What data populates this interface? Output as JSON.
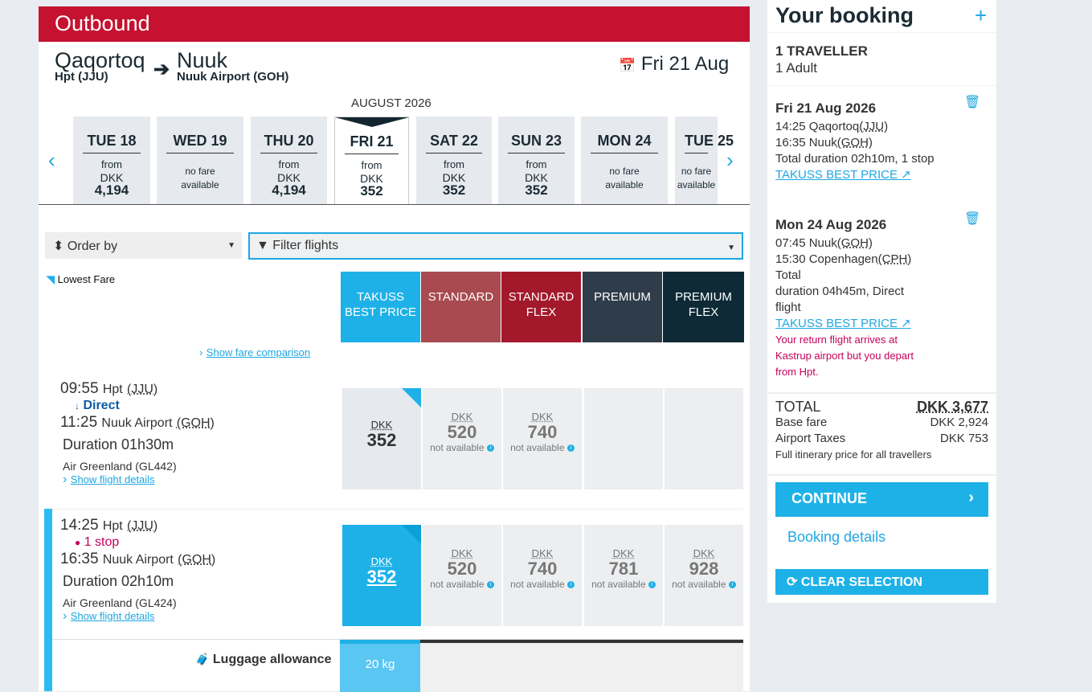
{
  "header": {
    "title": "Outbound"
  },
  "route": {
    "from_city": "Qaqortoq",
    "from_airport": "Hpt (JJU)",
    "to_city": "Nuuk",
    "to_airport": "Nuuk Airport (GOH)",
    "date": "Fri 21 Aug"
  },
  "calendar": {
    "month": "AUGUST 2026",
    "days": [
      {
        "day": "TUE 18",
        "from": "from",
        "cur": "DKK",
        "price": "4,194"
      },
      {
        "day": "WED 19",
        "nofare": "no fare",
        "available": "available"
      },
      {
        "day": "THU 20",
        "from": "from",
        "cur": "DKK",
        "price": "4,194"
      },
      {
        "day": "FRI 21",
        "from": "from",
        "cur": "DKK",
        "price": "352"
      },
      {
        "day": "SAT 22",
        "from": "from",
        "cur": "DKK",
        "price": "352"
      },
      {
        "day": "SUN 23",
        "from": "from",
        "cur": "DKK",
        "price": "352"
      },
      {
        "day": "MON 24",
        "nofare": "no fare",
        "available": "available"
      },
      {
        "day": "TUE 25",
        "nofare": "no fare",
        "available": "available"
      }
    ]
  },
  "filters": {
    "order_by": "Order by",
    "filter": "Filter flights"
  },
  "lowest_fare": "Lowest Fare",
  "show_fare_comparison": "Show fare comparison",
  "fare_headers": [
    {
      "l1": "TAKUSS",
      "l2": "BEST PRICE",
      "color": "#1eb1e8"
    },
    {
      "l1": "STANDARD",
      "l2": "",
      "color": "#a84a4f"
    },
    {
      "l1": "STANDARD",
      "l2": "FLEX",
      "color": "#a3192b"
    },
    {
      "l1": "PREMIUM",
      "l2": "",
      "color": "#2f3d4a"
    },
    {
      "l1": "PREMIUM",
      "l2": "FLEX",
      "color": "#0e2a36"
    }
  ],
  "flights": [
    {
      "dep": "09:55",
      "dep_apt": "Hpt",
      "dep_code": "(JJU)",
      "stops": "Direct",
      "arr": "11:25",
      "arr_apt": "Nuuk Airport",
      "arr_code": "(GOH)",
      "duration": "Duration 01h30m",
      "airline": "Air Greenland (GL442)",
      "details": "Show flight details",
      "fares": [
        {
          "cur": "DKK",
          "price": "352"
        },
        {
          "cur": "DKK",
          "price": "520",
          "na": "not available"
        },
        {
          "cur": "DKK",
          "price": "740",
          "na": "not available"
        }
      ]
    },
    {
      "dep": "14:25",
      "dep_apt": "Hpt",
      "dep_code": "(JJU)",
      "stops": "1 stop",
      "arr": "16:35",
      "arr_apt": "Nuuk Airport",
      "arr_code": "(GOH)",
      "duration": "Duration 02h10m",
      "airline": "Air Greenland (GL424)",
      "details": "Show flight details",
      "fares": [
        {
          "cur": "DKK",
          "price": "352"
        },
        {
          "cur": "DKK",
          "price": "520",
          "na": "not available"
        },
        {
          "cur": "DKK",
          "price": "740",
          "na": "not available"
        },
        {
          "cur": "DKK",
          "price": "781",
          "na": "not available"
        },
        {
          "cur": "DKK",
          "price": "928",
          "na": "not available"
        }
      ]
    }
  ],
  "luggage": {
    "label": "Luggage allowance",
    "value": "20 kg"
  },
  "booking": {
    "title": "Your booking",
    "travellers": "1 TRAVELLER",
    "adults": "1 Adult",
    "legs": [
      {
        "date": "Fri 21 Aug 2026",
        "l1": "14:25 Qaqortoq",
        "c1": "(JJU)",
        "l2": "16:35 Nuuk",
        "c2": "(GOH)",
        "l3": "Total duration 02h10m, 1 stop",
        "fare": "TAKUSS BEST PRICE"
      },
      {
        "date": "Mon 24 Aug 2026",
        "l1": "07:45 Nuuk",
        "c1": "(GOH)",
        "l2": "15:30 Copenhagen",
        "c2": "(CPH)",
        "l3": "Total",
        "l4": "duration 04h45m, Direct",
        "l5": "flight",
        "fare": "TAKUSS BEST PRICE",
        "warning": "Your return flight arrives at Kastrup airport but you depart from Hpt."
      }
    ],
    "total_label": "TOTAL",
    "total": "DKK 3,677",
    "base_label": "Base fare",
    "base": "DKK 2,924",
    "tax_label": "Airport Taxes",
    "tax": "DKK 753",
    "note": "Full itinerary price for all travellers",
    "continue": "CONTINUE",
    "details": "Booking details",
    "clear": "CLEAR SELECTION"
  }
}
